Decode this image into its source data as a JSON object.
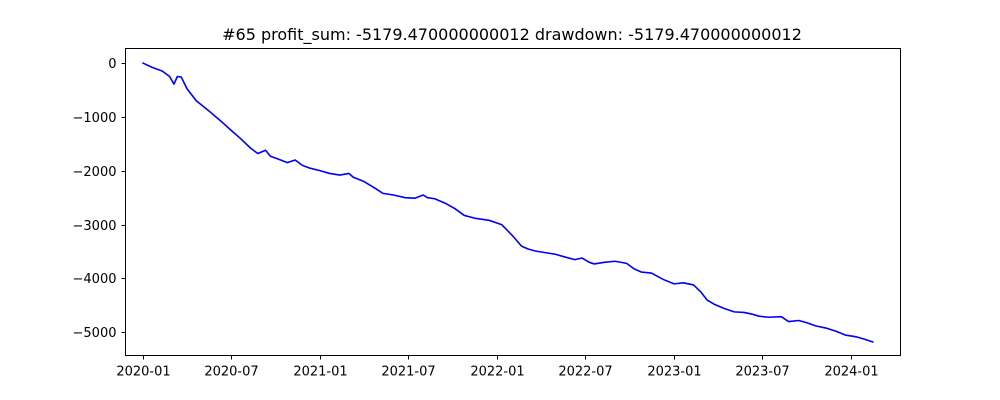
{
  "chart_data": {
    "type": "line",
    "title": "#65   profit_sum: -5179.470000000012 drawdown: -5179.470000000012",
    "xlabel": "",
    "ylabel": "",
    "x_tick_labels": [
      "2020-01",
      "2020-07",
      "2021-01",
      "2021-07",
      "2022-01",
      "2022-07",
      "2023-01",
      "2023-07",
      "2024-01"
    ],
    "y_tick_labels": [
      "0",
      "−1000",
      "−2000",
      "−3000",
      "−4000",
      "−5000"
    ],
    "y_ticks": [
      0,
      -1000,
      -2000,
      -3000,
      -4000,
      -5000
    ],
    "xlim": [
      "2019-11-26",
      "2024-04-12"
    ],
    "ylim": [
      -5430,
      270
    ],
    "grid": false,
    "series": [
      {
        "color": "#0000ff",
        "x": [
          "2020-01-01",
          "2020-01-20",
          "2020-02-10",
          "2020-02-25",
          "2020-03-05",
          "2020-03-12",
          "2020-03-20",
          "2020-04-01",
          "2020-04-20",
          "2020-05-15",
          "2020-06-10",
          "2020-07-01",
          "2020-07-20",
          "2020-08-10",
          "2020-08-25",
          "2020-09-10",
          "2020-09-20",
          "2020-10-05",
          "2020-10-25",
          "2020-11-10",
          "2020-11-25",
          "2020-12-10",
          "2021-01-01",
          "2021-01-20",
          "2021-02-10",
          "2021-03-01",
          "2021-03-10",
          "2021-04-01",
          "2021-04-25",
          "2021-05-10",
          "2021-06-01",
          "2021-06-25",
          "2021-07-15",
          "2021-08-01",
          "2021-08-10",
          "2021-08-25",
          "2021-09-15",
          "2021-10-05",
          "2021-10-25",
          "2021-11-15",
          "2021-12-15",
          "2022-01-10",
          "2022-02-01",
          "2022-02-20",
          "2022-03-05",
          "2022-03-20",
          "2022-04-10",
          "2022-05-01",
          "2022-05-20",
          "2022-06-10",
          "2022-06-25",
          "2022-07-10",
          "2022-07-20",
          "2022-08-10",
          "2022-09-01",
          "2022-09-25",
          "2022-10-10",
          "2022-10-25",
          "2022-11-15",
          "2022-12-10",
          "2023-01-01",
          "2023-01-20",
          "2023-02-10",
          "2023-02-25",
          "2023-03-10",
          "2023-03-25",
          "2023-04-15",
          "2023-05-05",
          "2023-05-25",
          "2023-06-10",
          "2023-06-25",
          "2023-07-15",
          "2023-08-10",
          "2023-08-25",
          "2023-09-15",
          "2023-10-01",
          "2023-10-20",
          "2023-11-10",
          "2023-12-01",
          "2023-12-20",
          "2024-01-10",
          "2024-01-30",
          "2024-02-15"
        ],
        "y": [
          0,
          -80,
          -150,
          -250,
          -390,
          -250,
          -260,
          -480,
          -700,
          -880,
          -1080,
          -1250,
          -1400,
          -1580,
          -1680,
          -1620,
          -1730,
          -1780,
          -1850,
          -1800,
          -1900,
          -1950,
          -2000,
          -2050,
          -2080,
          -2050,
          -2120,
          -2200,
          -2330,
          -2420,
          -2450,
          -2500,
          -2510,
          -2450,
          -2500,
          -2520,
          -2600,
          -2700,
          -2830,
          -2880,
          -2920,
          -3000,
          -3200,
          -3400,
          -3450,
          -3490,
          -3520,
          -3550,
          -3600,
          -3650,
          -3620,
          -3700,
          -3730,
          -3700,
          -3680,
          -3720,
          -3820,
          -3880,
          -3900,
          -4020,
          -4100,
          -4080,
          -4120,
          -4250,
          -4400,
          -4480,
          -4560,
          -4620,
          -4630,
          -4660,
          -4700,
          -4720,
          -4710,
          -4800,
          -4780,
          -4820,
          -4880,
          -4920,
          -4980,
          -5050,
          -5080,
          -5130,
          -5179.47
        ]
      }
    ]
  }
}
